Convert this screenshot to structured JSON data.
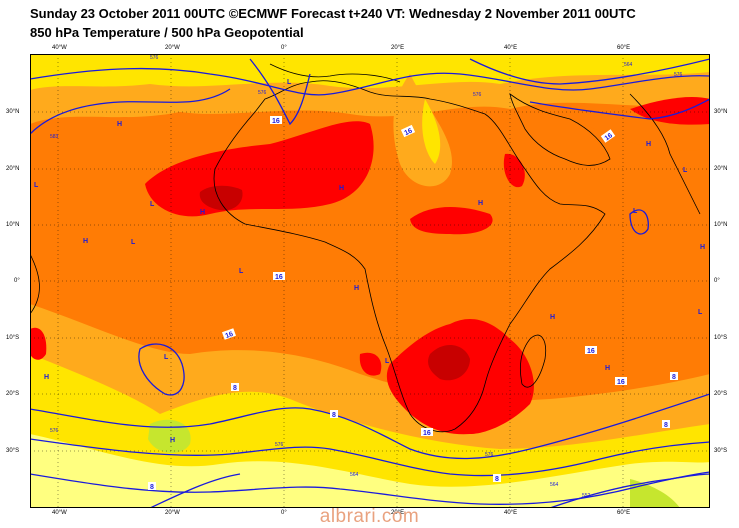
{
  "header": {
    "line1": "Sunday 23 October 2011 00UTC ©ECMWF Forecast t+240 VT: Wednesday 2 November 2011 00UTC",
    "line2": "850 hPa Temperature / 500 hPa Geopotential"
  },
  "map": {
    "lon_ticks": [
      "40°W",
      "20°W",
      "0°",
      "20°E",
      "40°E",
      "60°E"
    ],
    "lat_ticks": [
      "30°N",
      "20°N",
      "10°N",
      "0°",
      "10°S",
      "20°S",
      "30°S"
    ],
    "temp_labels": [
      "16",
      "16",
      "16",
      "16",
      "16",
      "16",
      "16",
      "16",
      "8",
      "8",
      "8",
      "8",
      "8",
      "8"
    ],
    "geo_labels": [
      "576",
      "576",
      "576",
      "576",
      "576",
      "576",
      "576",
      "564",
      "564",
      "564",
      "552",
      "583"
    ],
    "pressure_marks": [
      "H",
      "H",
      "H",
      "H",
      "H",
      "H",
      "H",
      "H",
      "H",
      "H",
      "H",
      "H",
      "L",
      "L",
      "L",
      "L",
      "L",
      "L",
      "L",
      "L",
      "L",
      "L",
      "L"
    ],
    "colors": {
      "ocean_orange": "#ff7c05",
      "light_orange": "#ffaa1c",
      "yellow": "#ffe500",
      "pale_yellow": "#ffff80",
      "red": "#ff0000",
      "dark_red": "#c80000",
      "green": "#c6e62e",
      "contour": "#1a1adc"
    }
  },
  "footer": {
    "watermark": "albrari.com"
  }
}
